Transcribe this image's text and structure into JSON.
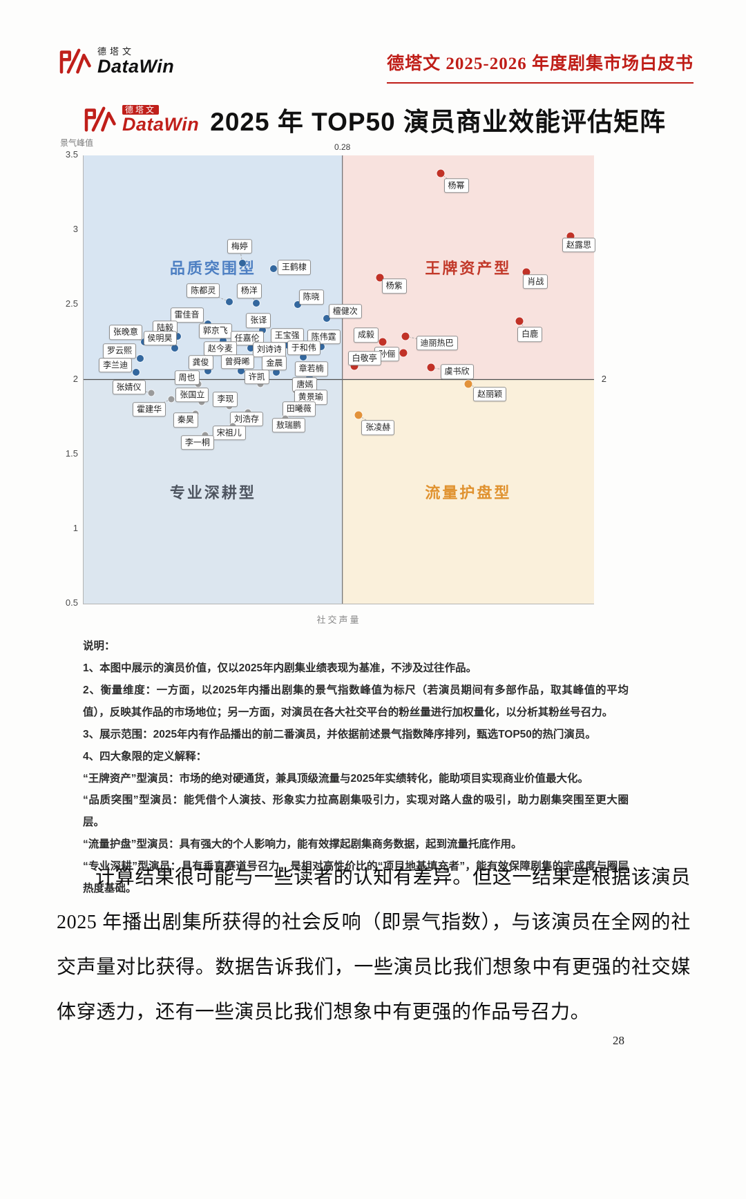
{
  "logo": {
    "cn": "德塔文",
    "en": "DataWin"
  },
  "header": {
    "right_title": "德塔文 2025-2026 年度剧集市场白皮书"
  },
  "chart_data": {
    "type": "scatter",
    "title": "2025 年 TOP50 演员商业效能评估矩阵",
    "xlabel": "社交声量",
    "ylabel": "景气峰值",
    "ylim": [
      0.5,
      3.5
    ],
    "yticks": [
      "3.5",
      "3",
      "2.5",
      "2",
      "1.5",
      "1",
      "0.5"
    ],
    "mid_y": 2,
    "divider_x_pct": 50.7,
    "divider_label": "0.28",
    "right_edge_label": "2",
    "legend": "off",
    "grid": "off",
    "quadrants": [
      {
        "key": "top-left",
        "name": "品质突围型",
        "row": 0,
        "col": 0,
        "bg": "#d8e5f2",
        "color": "#4d7fc2"
      },
      {
        "key": "top-right",
        "name": "王牌资产型",
        "row": 0,
        "col": 1,
        "bg": "#f8e2de",
        "color": "#c2392a"
      },
      {
        "key": "bottom-left",
        "name": "专业深耕型",
        "row": 1,
        "col": 0,
        "bg": "#dce6ef",
        "color": "#4e5560"
      },
      {
        "key": "bottom-right",
        "name": "流量护盘型",
        "row": 1,
        "col": 1,
        "bg": "#faf0db",
        "color": "#e0922f"
      }
    ],
    "series": [
      {
        "name": "品质突围型",
        "color": "#33679e",
        "dot_size": 10,
        "points": [
          {
            "label": "梅婷",
            "x": 31.1,
            "y": 2.78,
            "dx": -4,
            "dy": -24
          },
          {
            "label": "王鹤棣",
            "x": 37.2,
            "y": 2.74,
            "dx": 30,
            "dy": -2
          },
          {
            "label": "陈都灵",
            "x": 28.6,
            "y": 2.52,
            "dx": -38,
            "dy": -16
          },
          {
            "label": "杨洋",
            "x": 33.8,
            "y": 2.51,
            "dx": -10,
            "dy": -18
          },
          {
            "label": "陈晓",
            "x": 41.9,
            "y": 2.5,
            "dx": 20,
            "dy": -11
          },
          {
            "label": "檀健次",
            "x": 47.6,
            "y": 2.41,
            "dx": 27,
            "dy": -10
          },
          {
            "label": "雷佳音",
            "x": 24.3,
            "y": 2.37,
            "dx": -30,
            "dy": -13
          },
          {
            "label": "张译",
            "x": 35.1,
            "y": 2.33,
            "dx": -6,
            "dy": -14
          },
          {
            "label": "陆毅",
            "x": 18.4,
            "y": 2.29,
            "dx": -18,
            "dy": -12
          },
          {
            "label": "张晚意",
            "x": 11.9,
            "y": 2.25,
            "dx": -27,
            "dy": -14
          },
          {
            "label": "侯明昊",
            "x": 17.8,
            "y": 2.21,
            "dx": -21,
            "dy": -14
          },
          {
            "label": "郭京飞",
            "x": 27.3,
            "y": 2.26,
            "dx": -11,
            "dy": -14
          },
          {
            "label": "任嘉伦",
            "x": 32.7,
            "y": 2.21,
            "dx": -5,
            "dy": -14
          },
          {
            "label": "王宝强",
            "x": 40.0,
            "y": 2.23,
            "dx": -1,
            "dy": -14
          },
          {
            "label": "陈伟霆",
            "x": 46.5,
            "y": 2.22,
            "dx": 4,
            "dy": -14
          },
          {
            "label": "罗云熙",
            "x": 11.1,
            "y": 2.14,
            "dx": -30,
            "dy": -11
          },
          {
            "label": "赵今麦",
            "x": 28.4,
            "y": 2.15,
            "dx": -12,
            "dy": -12
          },
          {
            "label": "刘诗诗",
            "x": 36.8,
            "y": 2.14,
            "dx": -3,
            "dy": -13
          },
          {
            "label": "于和伟",
            "x": 43.0,
            "y": 2.15,
            "dx": 1,
            "dy": -13
          },
          {
            "label": "李兰迪",
            "x": 10.3,
            "y": 2.05,
            "dx": -30,
            "dy": -10
          },
          {
            "label": "龚俊",
            "x": 24.3,
            "y": 2.06,
            "dx": -10,
            "dy": -12
          },
          {
            "label": "曾舜晞",
            "x": 30.8,
            "y": 2.06,
            "dx": -5,
            "dy": -13
          },
          {
            "label": "金晨",
            "x": 37.8,
            "y": 2.05,
            "dx": -3,
            "dy": -13
          },
          {
            "label": "章若楠",
            "x": 44.2,
            "y": 2.01,
            "dx": 3,
            "dy": -13
          }
        ]
      },
      {
        "name": "专业深耕型",
        "color": "#9a9a9a",
        "dot_size": 9,
        "points": [
          {
            "label": "周也",
            "x": 22.4,
            "y": 1.97,
            "dx": -16,
            "dy": -9
          },
          {
            "label": "许凯",
            "x": 34.6,
            "y": 1.97,
            "dx": -5,
            "dy": -10
          },
          {
            "label": "张婧仪",
            "x": 13.2,
            "y": 1.91,
            "dx": -32,
            "dy": -8
          },
          {
            "label": "唐嫣",
            "x": 41.6,
            "y": 1.93,
            "dx": 13,
            "dy": -8
          },
          {
            "label": "张国立",
            "x": 23.2,
            "y": 1.85,
            "dx": -14,
            "dy": -10
          },
          {
            "label": "李现",
            "x": 28.6,
            "y": 1.82,
            "dx": -6,
            "dy": -10
          },
          {
            "label": "黄景瑜",
            "x": 43.0,
            "y": 1.84,
            "dx": 11,
            "dy": -9
          },
          {
            "label": "霍建华",
            "x": 17.2,
            "y": 1.87,
            "dx": -32,
            "dy": 15
          },
          {
            "label": "田曦薇",
            "x": 41.1,
            "y": 1.77,
            "dx": 8,
            "dy": -7
          },
          {
            "label": "秦昊",
            "x": 21.9,
            "y": 1.77,
            "dx": -14,
            "dy": 9
          },
          {
            "label": "刘浩存",
            "x": 32.2,
            "y": 1.78,
            "dx": -2,
            "dy": 10
          },
          {
            "label": "敖瑞鹏",
            "x": 39.5,
            "y": 1.74,
            "dx": 5,
            "dy": 10
          },
          {
            "label": "宋祖儿",
            "x": 29.2,
            "y": 1.69,
            "dx": -5,
            "dy": 10
          },
          {
            "label": "李一桐",
            "x": 23.8,
            "y": 1.63,
            "dx": -11,
            "dy": 11
          }
        ]
      },
      {
        "name": "王牌资产型",
        "color": "#c13227",
        "dot_size": 11,
        "points": [
          {
            "label": "杨幂",
            "x": 69.9,
            "y": 3.38,
            "dx": 23,
            "dy": 18
          },
          {
            "label": "赵露思",
            "x": 95.4,
            "y": 2.96,
            "dx": 12,
            "dy": 13
          },
          {
            "label": "肖战",
            "x": 86.8,
            "y": 2.72,
            "dx": 13,
            "dy": 14
          },
          {
            "label": "杨紫",
            "x": 58.0,
            "y": 2.68,
            "dx": 21,
            "dy": 12
          },
          {
            "label": "白鹿",
            "x": 85.4,
            "y": 2.39,
            "dx": 15,
            "dy": 19
          },
          {
            "label": "成毅",
            "x": 58.6,
            "y": 2.25,
            "dx": -24,
            "dy": -10
          },
          {
            "label": "迪丽热巴",
            "x": 63.0,
            "y": 2.29,
            "dx": 46,
            "dy": 10
          },
          {
            "label": "孙俪",
            "x": 62.7,
            "y": 2.18,
            "dx": -24,
            "dy": 2
          },
          {
            "label": "白敬亭",
            "x": 53.0,
            "y": 2.09,
            "dx": 15,
            "dy": -11
          },
          {
            "label": "虞书欣",
            "x": 68.0,
            "y": 2.08,
            "dx": 38,
            "dy": 6
          }
        ]
      },
      {
        "name": "流量护盘型",
        "color": "#e2923a",
        "dot_size": 11,
        "points": [
          {
            "label": "赵丽颖",
            "x": 75.4,
            "y": 1.97,
            "dx": 31,
            "dy": 15
          },
          {
            "label": "张凌赫",
            "x": 53.9,
            "y": 1.76,
            "dx": 28,
            "dy": 18
          }
        ]
      }
    ]
  },
  "notes": {
    "heading": "说明：",
    "items": [
      "1、本图中展示的演员价值，仅以2025年内剧集业绩表现为基准，不涉及过往作品。",
      "2、衡量维度：一方面，以2025年内播出剧集的景气指数峰值为标尺（若演员期间有多部作品，取其峰值的平均值），反映其作品的市场地位；另一方面，对演员在各大社交平台的粉丝量进行加权量化，以分析其粉丝号召力。",
      "3、展示范围：2025年内有作品播出的前二番演员，并依据前述景气指数降序排列，甄选TOP50的热门演员。",
      "4、四大象限的定义解释：",
      "“王牌资产”型演员：市场的绝对硬通货，兼具顶级流量与2025年实绩转化，能助项目实现商业价值最大化。",
      "“品质突围”型演员：能凭借个人演技、形象实力拉高剧集吸引力，实现对路人盘的吸引，助力剧集突围至更大圈层。",
      "“流量护盘”型演员：具有强大的个人影响力，能有效撑起剧集商务数据，起到流量托底作用。",
      "“专业深耕”型演员：具有垂直赛道号召力，是相对高性价比的“项目地基填充者”，能有效保障剧集的完成度与圈层热度基础。"
    ]
  },
  "paragraph": "计算结果很可能与一些读者的认知有差异。但这一结果是根据该演员 2025 年播出剧集所获得的社会反响（即景气指数），与该演员在全网的社交声量对比获得。数据告诉我们，一些演员比我们想象中有更强的社交媒体穿透力，还有一些演员比我们想象中有更强的作品号召力。",
  "page_number": "28"
}
